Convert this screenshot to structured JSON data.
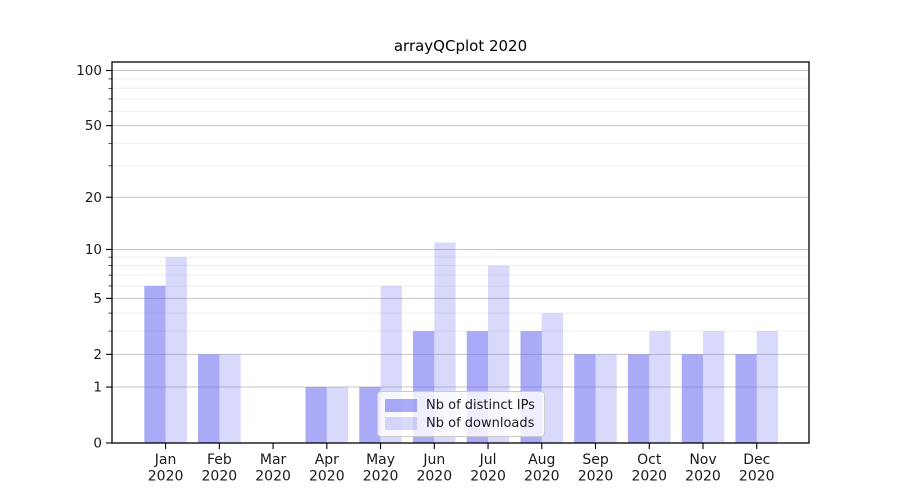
{
  "chart_data": {
    "type": "bar",
    "title": "arrayQCplot 2020",
    "categories": [
      "Jan\n2020",
      "Feb\n2020",
      "Mar\n2020",
      "Apr\n2020",
      "May\n2020",
      "Jun\n2020",
      "Jul\n2020",
      "Aug\n2020",
      "Sep\n2020",
      "Oct\n2020",
      "Nov\n2020",
      "Dec\n2020"
    ],
    "series": [
      {
        "name": "Nb of distinct IPs",
        "color": "#6e6ef2",
        "alpha": 0.59,
        "values": [
          6,
          2,
          0,
          1,
          1,
          3,
          3,
          3,
          2,
          2,
          2,
          2
        ]
      },
      {
        "name": "Nb of downloads",
        "color": "#6e6ef2",
        "alpha": 0.26,
        "values": [
          9,
          2,
          0,
          1,
          6,
          11,
          8,
          4,
          2,
          3,
          3,
          3
        ]
      }
    ],
    "y_axis": {
      "scale": "log1p",
      "ticks": [
        0,
        1,
        2,
        5,
        10,
        20,
        50,
        100
      ],
      "minor_ticks": [
        3,
        4,
        6,
        7,
        8,
        9,
        30,
        40,
        60,
        70,
        80,
        90
      ],
      "ylim": [
        0,
        112
      ]
    },
    "xlabel": "",
    "ylabel": "",
    "grid": true,
    "legend_position": "lower center",
    "colors": {
      "bar_base": "#6e6ef2",
      "bar_ips_flat": "#ababf7",
      "bar_downloads_flat": "#d9d9fc",
      "major_grid": "#c6c6c6",
      "minor_grid": "#ededed",
      "spine": "#000000",
      "tick_label": "#1a1a1a"
    }
  }
}
